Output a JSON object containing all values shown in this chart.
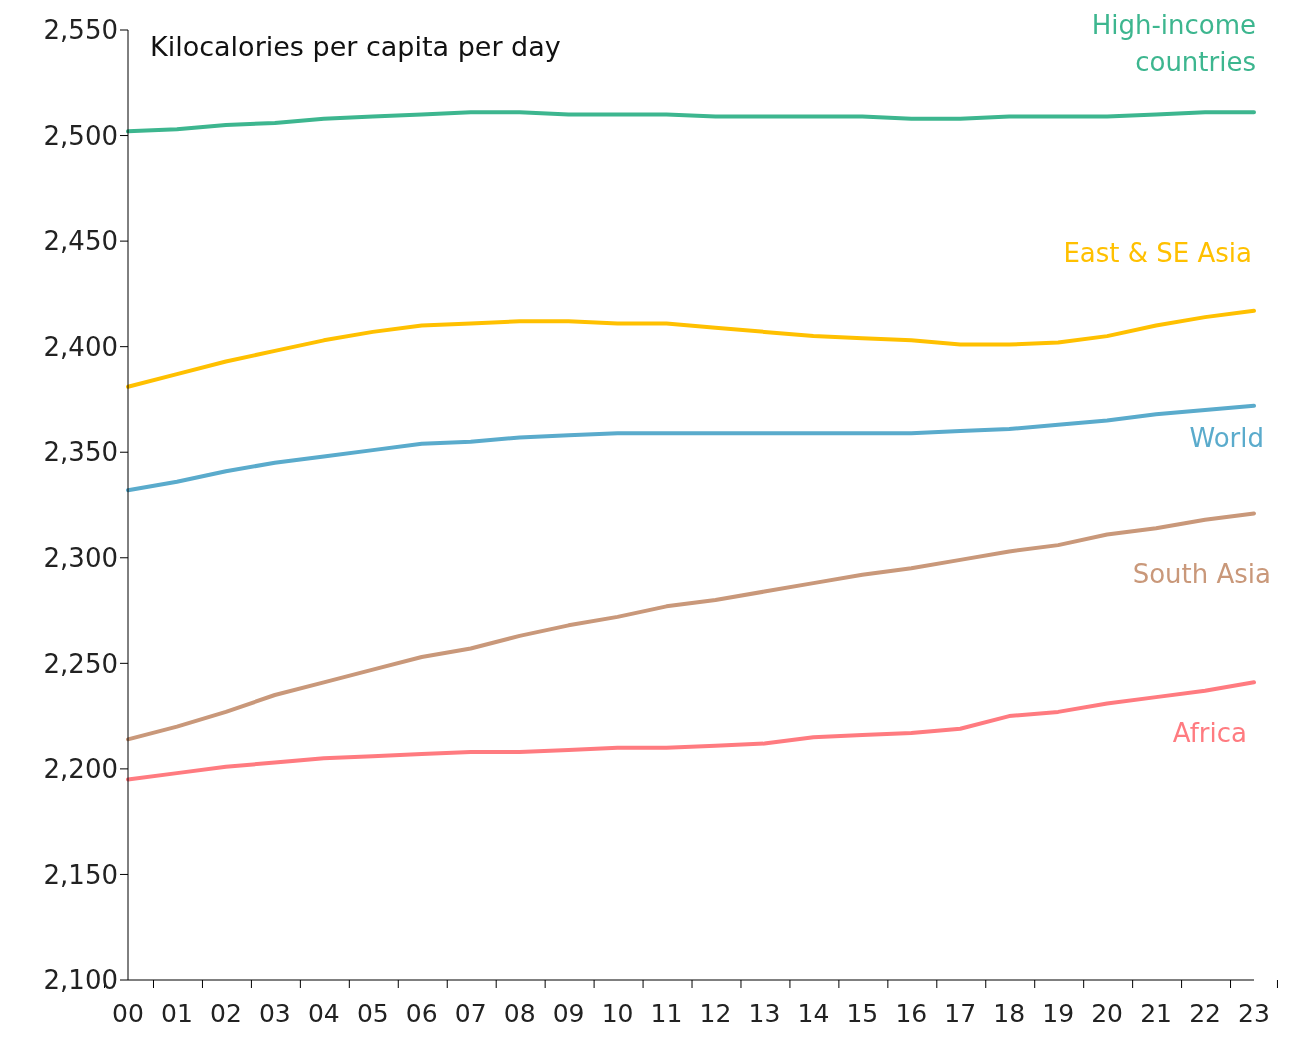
{
  "chart_data": {
    "type": "line",
    "ylabel": "Kilocalories per capita per day",
    "categories": [
      "00",
      "01",
      "02",
      "03",
      "04",
      "05",
      "06",
      "07",
      "08",
      "09",
      "10",
      "11",
      "12",
      "13",
      "14",
      "15",
      "16",
      "17",
      "18",
      "19",
      "20",
      "21",
      "22",
      "23"
    ],
    "ylim": [
      2100,
      2550
    ],
    "yticks": [
      {
        "value": 2100,
        "label": "2,100"
      },
      {
        "value": 2150,
        "label": "2,150"
      },
      {
        "value": 2200,
        "label": "2,200"
      },
      {
        "value": 2250,
        "label": "2,250"
      },
      {
        "value": 2300,
        "label": "2,300"
      },
      {
        "value": 2350,
        "label": "2,350"
      },
      {
        "value": 2400,
        "label": "2,400"
      },
      {
        "value": 2450,
        "label": "2,450"
      },
      {
        "value": 2500,
        "label": "2,500"
      },
      {
        "value": 2550,
        "label": "2,550"
      }
    ],
    "grid": false,
    "legend": false,
    "marker": "none",
    "line_style": "solid",
    "series": [
      {
        "name": "High-income countries",
        "color": "#3db68f",
        "values": [
          2502,
          2503,
          2505,
          2506,
          2508,
          2509,
          2510,
          2511,
          2511,
          2510,
          2510,
          2510,
          2509,
          2509,
          2509,
          2509,
          2508,
          2508,
          2509,
          2509,
          2509,
          2510,
          2511,
          2511
        ]
      },
      {
        "name": "East & SE Asia",
        "color": "#ffc000",
        "values": [
          2381,
          2387,
          2393,
          2398,
          2403,
          2407,
          2410,
          2411,
          2412,
          2412,
          2411,
          2411,
          2409,
          2407,
          2405,
          2404,
          2403,
          2401,
          2401,
          2402,
          2405,
          2410,
          2414,
          2417
        ]
      },
      {
        "name": "World",
        "color": "#5aabcc",
        "values": [
          2332,
          2336,
          2341,
          2345,
          2348,
          2351,
          2354,
          2355,
          2357,
          2358,
          2359,
          2359,
          2359,
          2359,
          2359,
          2359,
          2359,
          2360,
          2361,
          2363,
          2365,
          2368,
          2370,
          2372
        ]
      },
      {
        "name": "South Asia",
        "color": "#c9987a",
        "values": [
          2214,
          2220,
          2227,
          2235,
          2241,
          2247,
          2253,
          2257,
          2263,
          2268,
          2272,
          2277,
          2280,
          2284,
          2288,
          2292,
          2295,
          2299,
          2303,
          2306,
          2311,
          2314,
          2318,
          2321
        ]
      },
      {
        "name": "Africa",
        "color": "#ff7b80",
        "values": [
          2195,
          2198,
          2201,
          2203,
          2205,
          2206,
          2207,
          2208,
          2208,
          2209,
          2210,
          2210,
          2211,
          2212,
          2215,
          2216,
          2217,
          2219,
          2225,
          2227,
          2231,
          2234,
          2237,
          2241
        ]
      }
    ]
  }
}
